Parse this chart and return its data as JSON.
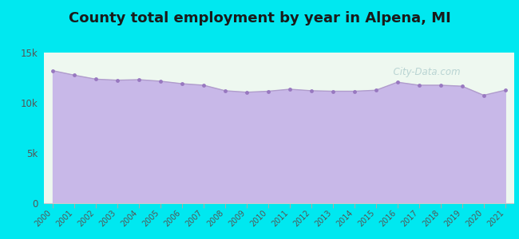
{
  "title": "County total employment by year in Alpena, MI",
  "years": [
    2000,
    2001,
    2002,
    2003,
    2004,
    2005,
    2006,
    2007,
    2008,
    2009,
    2010,
    2011,
    2012,
    2013,
    2014,
    2015,
    2016,
    2017,
    2018,
    2019,
    2020,
    2021
  ],
  "values": [
    13200,
    12750,
    12350,
    12250,
    12300,
    12150,
    11900,
    11750,
    11200,
    11050,
    11150,
    11350,
    11200,
    11150,
    11150,
    11250,
    12050,
    11750,
    11750,
    11650,
    10750,
    11250
  ],
  "line_color": "#b09ccc",
  "fill_color": "#c8b8e8",
  "fill_alpha": 1.0,
  "marker_color": "#9878c0",
  "marker_size": 3.5,
  "background_outer": "#00e8f0",
  "background_inner": "#eef8f0",
  "ylim": [
    0,
    15000
  ],
  "yticks": [
    0,
    5000,
    10000,
    15000
  ],
  "ytick_labels": [
    "0",
    "5k",
    "10k",
    "15k"
  ],
  "title_fontsize": 13,
  "title_fontweight": "bold",
  "watermark": "  City-Data.com"
}
